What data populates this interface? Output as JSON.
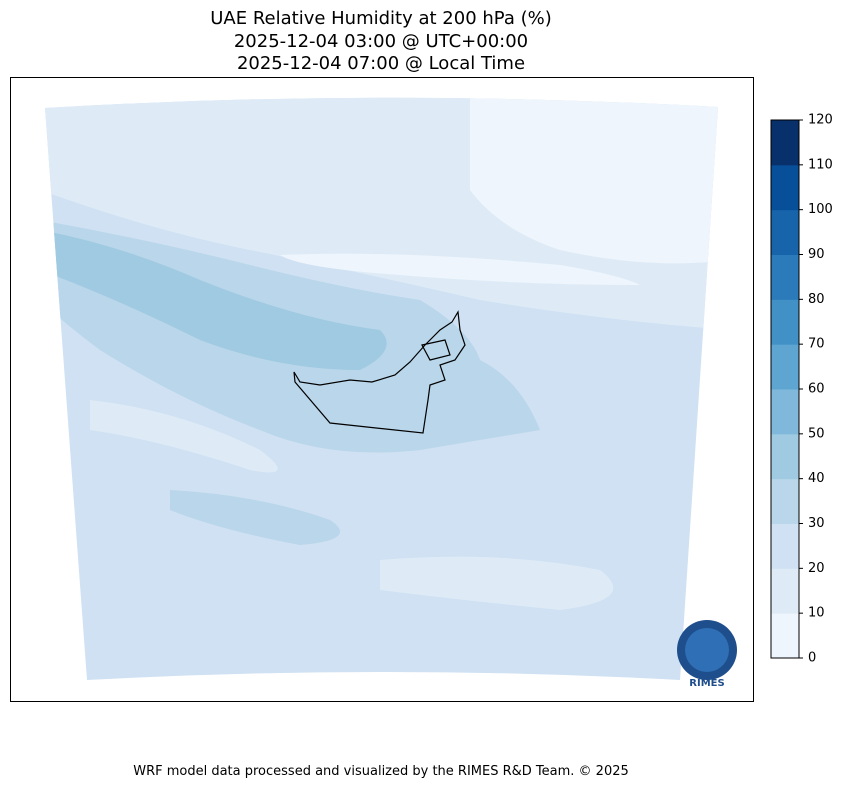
{
  "title": [
    "UAE Relative Humidity at 200 hPa (%)",
    "2025-12-04 03:00 @ UTC+00:00",
    "2025-12-04 07:00 @ Local Time"
  ],
  "colorbar": {
    "lim": [
      0,
      120
    ],
    "ticks": [
      0,
      10,
      20,
      30,
      40,
      50,
      60,
      70,
      80,
      90,
      100,
      110,
      120
    ],
    "colors": [
      "#eef5fc",
      "#deebf7",
      "#cfe1f2",
      "#b9d6ea",
      "#9fcae1",
      "#7fb8da",
      "#5ea6d1",
      "#4191c6",
      "#2b7ab9",
      "#1764ab",
      "#084f9a",
      "#08306b"
    ]
  },
  "logo": "RIMES",
  "footer": "WRF model data processed and visualized by the RIMES R&D Team. © 2025"
}
